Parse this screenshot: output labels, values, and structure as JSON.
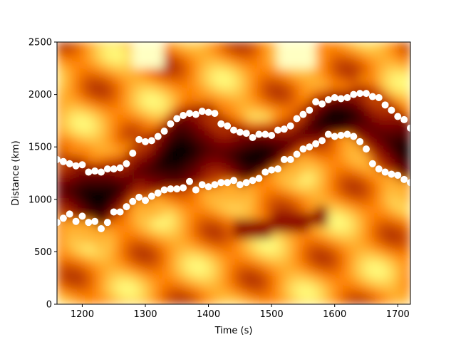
{
  "chart_data": {
    "type": "scatter",
    "background": "heatmap",
    "colormap": "afmhot",
    "xlabel": "Time (s)",
    "ylabel": "Distance (km)",
    "xlim": [
      1160,
      1720
    ],
    "ylim": [
      0,
      2500
    ],
    "xticks": [
      1200,
      1300,
      1400,
      1500,
      1600,
      1700
    ],
    "yticks": [
      0,
      500,
      1000,
      1500,
      2000,
      2500
    ],
    "marker_color": "#ffffff",
    "series": [
      {
        "x": [
          1160,
          1170,
          1180,
          1190,
          1200,
          1210,
          1220,
          1230,
          1240,
          1250,
          1260,
          1270,
          1280,
          1290,
          1300,
          1310,
          1320,
          1330,
          1340,
          1350,
          1360,
          1370,
          1380,
          1390,
          1400,
          1410,
          1420,
          1430,
          1440,
          1450,
          1460,
          1470,
          1480,
          1490,
          1500,
          1510,
          1520,
          1530,
          1540,
          1550,
          1560,
          1570,
          1580,
          1590,
          1600,
          1610,
          1620,
          1630,
          1640,
          1650,
          1660,
          1670,
          1680,
          1690,
          1700,
          1710,
          1720
        ],
        "y": [
          1380,
          1360,
          1340,
          1320,
          1330,
          1260,
          1270,
          1260,
          1290,
          1290,
          1300,
          1340,
          1440,
          1570,
          1550,
          1560,
          1600,
          1650,
          1720,
          1770,
          1800,
          1820,
          1810,
          1840,
          1830,
          1820,
          1720,
          1700,
          1660,
          1640,
          1630,
          1590,
          1620,
          1620,
          1610,
          1660,
          1670,
          1700,
          1770,
          1810,
          1850,
          1930,
          1910,
          1950,
          1970,
          1960,
          1970,
          2000,
          2010,
          2010,
          1980,
          1970,
          1900,
          1850,
          1790,
          1760,
          1680
        ]
      },
      {
        "x": [
          1160,
          1170,
          1180,
          1190,
          1200,
          1210,
          1220,
          1230,
          1240,
          1250,
          1260,
          1270,
          1280,
          1290,
          1300,
          1310,
          1320,
          1330,
          1340,
          1350,
          1360,
          1370,
          1380,
          1390,
          1400,
          1410,
          1420,
          1430,
          1440,
          1450,
          1460,
          1470,
          1480,
          1490,
          1500,
          1510,
          1520,
          1530,
          1540,
          1550,
          1560,
          1570,
          1580,
          1590,
          1600,
          1610,
          1620,
          1630,
          1640,
          1650,
          1660,
          1670,
          1680,
          1690,
          1700,
          1710,
          1720
        ],
        "y": [
          780,
          820,
          860,
          790,
          840,
          780,
          790,
          720,
          780,
          880,
          880,
          930,
          980,
          1020,
          990,
          1030,
          1060,
          1090,
          1100,
          1100,
          1110,
          1170,
          1090,
          1140,
          1120,
          1140,
          1160,
          1160,
          1180,
          1140,
          1160,
          1180,
          1200,
          1260,
          1280,
          1290,
          1380,
          1380,
          1430,
          1480,
          1500,
          1530,
          1560,
          1620,
          1600,
          1610,
          1620,
          1600,
          1550,
          1480,
          1340,
          1290,
          1260,
          1240,
          1230,
          1190,
          1160
        ]
      }
    ]
  }
}
